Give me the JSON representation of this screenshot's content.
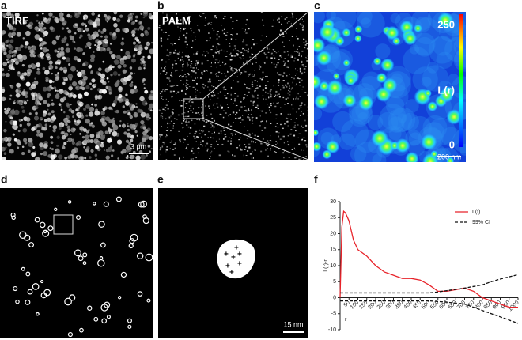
{
  "panels": {
    "a": {
      "label": "a",
      "title": "TIRF",
      "scale": "3 µm"
    },
    "b": {
      "label": "b",
      "title": "PALM"
    },
    "c": {
      "label": "c",
      "colorbar_max": "250",
      "colorbar_name": "L(r)",
      "colorbar_min": "0",
      "scale": "200 nm"
    },
    "d": {
      "label": "d"
    },
    "e": {
      "label": "e",
      "scale": "15 nm"
    },
    "f": {
      "label": "f"
    }
  },
  "chart_data": {
    "type": "line",
    "y_label": "L(r)-r",
    "x_label": "r",
    "x": [
      0,
      10,
      20,
      30,
      50,
      75,
      100,
      150,
      200,
      250,
      300,
      350,
      400,
      450,
      500,
      550,
      600,
      650,
      700,
      750,
      800,
      850,
      900,
      950,
      1000
    ],
    "series": [
      {
        "name": "L(t)",
        "color": "#e8232a",
        "dash": false,
        "values": [
          0,
          22,
          27,
          26.5,
          24,
          18,
          15,
          13,
          10,
          8,
          7,
          6,
          6,
          5.5,
          4,
          2,
          2,
          2.5,
          3,
          2,
          0,
          -1,
          -2,
          -3,
          -3
        ]
      },
      {
        "name": "99% CI",
        "color": "#111111",
        "dash": true,
        "values": [
          1.5,
          1.5,
          1.5,
          1.5,
          1.5,
          1.5,
          1.5,
          1.5,
          1.5,
          1.5,
          1.5,
          1.5,
          1.5,
          1.5,
          1.5,
          1.8,
          2.2,
          2.6,
          3,
          3.5,
          4,
          5,
          5.8,
          6.5,
          7.2
        ],
        "lower": [
          -1,
          -1,
          -1,
          -1,
          -1,
          -1,
          -1,
          -1,
          -1,
          -1,
          -1,
          -1,
          -1,
          -1,
          -1,
          -1.2,
          -1.4,
          -1.7,
          -2,
          -3,
          -4,
          -5,
          -6,
          -7,
          -8
        ]
      }
    ],
    "xlim": [
      0,
      1000
    ],
    "ylim": [
      -10,
      30
    ],
    "xticks": [
      50,
      100,
      150,
      200,
      250,
      300,
      350,
      400,
      450,
      500,
      550,
      600,
      650,
      700,
      750,
      800,
      850,
      900,
      950,
      1000
    ],
    "yticks": [
      -10,
      -5,
      0,
      5,
      10,
      15,
      20,
      25,
      30
    ],
    "legend": "upper right"
  }
}
